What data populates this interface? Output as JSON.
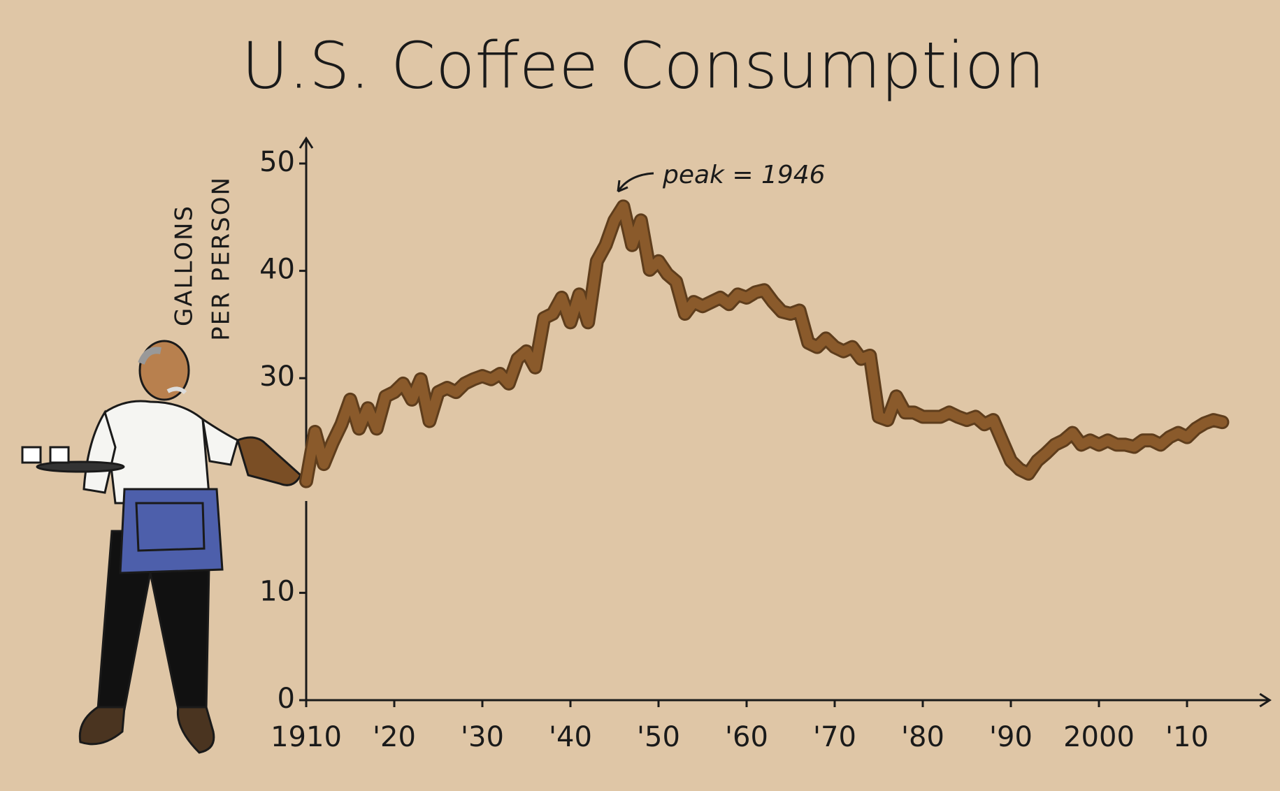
{
  "chart_data": {
    "type": "line",
    "title": "U.S. Coffee Consumption",
    "y_label": [
      "GALLONS",
      "PER PERSON"
    ],
    "annotation": "peak = 1946",
    "x": [
      1910,
      1911,
      1912,
      1913,
      1914,
      1915,
      1916,
      1917,
      1918,
      1919,
      1920,
      1921,
      1922,
      1923,
      1924,
      1925,
      1926,
      1927,
      1928,
      1929,
      1930,
      1931,
      1932,
      1933,
      1934,
      1935,
      1936,
      1937,
      1938,
      1939,
      1940,
      1941,
      1942,
      1943,
      1944,
      1945,
      1946,
      1947,
      1948,
      1949,
      1950,
      1951,
      1952,
      1953,
      1954,
      1955,
      1956,
      1957,
      1958,
      1959,
      1960,
      1961,
      1962,
      1963,
      1964,
      1965,
      1966,
      1967,
      1968,
      1969,
      1970,
      1971,
      1972,
      1973,
      1974,
      1975,
      1976,
      1977,
      1978,
      1979,
      1980,
      1981,
      1982,
      1983,
      1984,
      1985,
      1986,
      1987,
      1988,
      1989,
      1990,
      1991,
      1992,
      1993,
      1994,
      1995,
      1996,
      1997,
      1998,
      1999,
      2000,
      2001,
      2002,
      2003,
      2004,
      2005,
      2006,
      2007,
      2008,
      2009,
      2010,
      2011,
      2012,
      2013,
      2014
    ],
    "series": [
      {
        "name": "Gallons per person",
        "color": "#8a5a2b",
        "values": [
          20.4,
          25,
          22,
          24,
          25.7,
          28,
          25.3,
          27.2,
          25.3,
          28.3,
          28.7,
          29.5,
          28,
          29.9,
          26,
          28.7,
          29.1,
          28.7,
          29.5,
          29.9,
          30.2,
          29.9,
          30.4,
          29.5,
          31.8,
          32.5,
          31,
          35.6,
          36,
          37.5,
          35.2,
          37.8,
          35.2,
          40.9,
          42.4,
          44.7,
          46,
          42.4,
          44.7,
          40.1,
          40.9,
          39.7,
          39,
          36,
          37.1,
          36.7,
          37.1,
          37.5,
          36.9,
          37.8,
          37.5,
          38,
          38.2,
          37.1,
          36.2,
          36,
          36.3,
          33.3,
          32.9,
          33.7,
          32.9,
          32.5,
          32.9,
          31.8,
          32.1,
          26.4,
          26.1,
          28.3,
          26.8,
          26.8,
          26.4,
          26.4,
          26.4,
          26.8,
          26.4,
          26.1,
          26.4,
          25.7,
          26.1,
          24.2,
          22.3,
          21.5,
          21.1,
          22.3,
          23,
          23.8,
          24.2,
          24.9,
          23.8,
          24.2,
          23.8,
          24.2,
          23.8,
          23.8,
          23.6,
          24.2,
          24.2,
          23.8,
          24.5,
          24.9,
          24.5,
          25.3,
          25.8,
          26.1,
          25.9
        ]
      }
    ],
    "xlim": [
      1910,
      2017
    ],
    "xticks": [
      {
        "value": 1910,
        "label": "1910"
      },
      {
        "value": 1920,
        "label": "'20"
      },
      {
        "value": 1930,
        "label": "'30"
      },
      {
        "value": 1940,
        "label": "'40"
      },
      {
        "value": 1950,
        "label": "'50"
      },
      {
        "value": 1960,
        "label": "'60"
      },
      {
        "value": 1970,
        "label": "'70"
      },
      {
        "value": 1980,
        "label": "'80"
      },
      {
        "value": 1990,
        "label": "'90"
      },
      {
        "value": 2000,
        "label": "2000"
      },
      {
        "value": 2010,
        "label": "'10"
      }
    ],
    "ylim": [
      0,
      50
    ],
    "yticks": [
      0,
      10,
      30,
      40,
      50
    ],
    "grid": false
  }
}
